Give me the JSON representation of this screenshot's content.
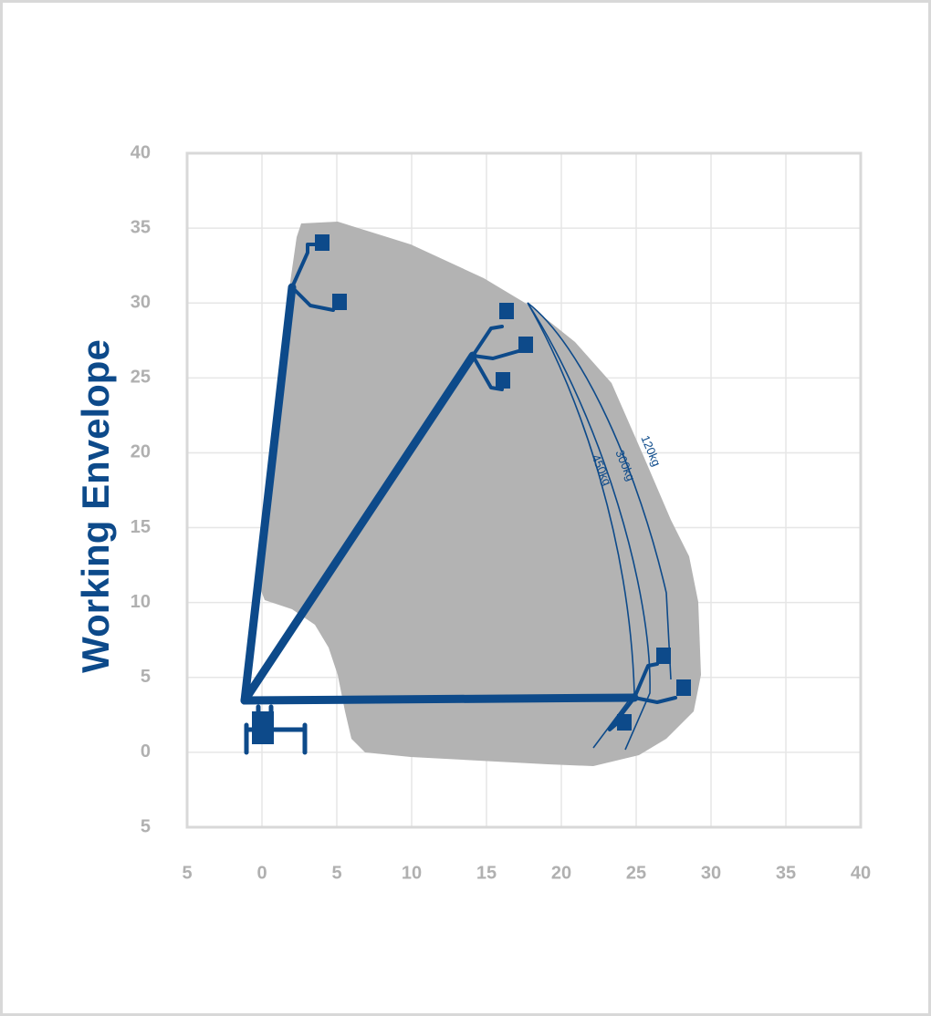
{
  "chart_data": {
    "type": "envelope",
    "title": "Working Envelope",
    "xlim": [
      -5,
      40
    ],
    "ylim": [
      -5,
      40
    ],
    "xticks": [
      {
        "value": -5,
        "label": "5"
      },
      0,
      5,
      10,
      15,
      20,
      25,
      30,
      35,
      40
    ],
    "yticks": [
      {
        "value": -5,
        "label": "5"
      },
      0,
      5,
      10,
      15,
      20,
      25,
      30,
      35,
      40
    ],
    "grid": true,
    "annotations": [
      "450kg",
      "300kg",
      "120kg"
    ]
  }
}
